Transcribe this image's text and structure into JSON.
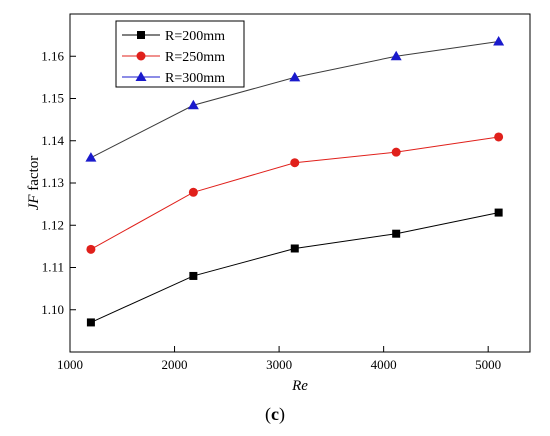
{
  "chart_data": {
    "type": "line",
    "xlabel": "Re",
    "ylabel_italic": "JF",
    "ylabel_rest": " factor",
    "xlim": [
      1000,
      5400
    ],
    "ylim": [
      1.09,
      1.17
    ],
    "xticks": [
      1000,
      2000,
      3000,
      4000,
      5000
    ],
    "yticks": [
      1.1,
      1.11,
      1.12,
      1.13,
      1.14,
      1.15,
      1.16
    ],
    "x": [
      1200,
      2180,
      3150,
      4120,
      5100
    ],
    "series": [
      {
        "name": "R=200mm",
        "values": [
          1.097,
          1.108,
          1.1145,
          1.118,
          1.123
        ],
        "color": "#000000",
        "line_color": "#000000",
        "marker": "square"
      },
      {
        "name": "R=250mm",
        "values": [
          1.1143,
          1.1278,
          1.1348,
          1.1373,
          1.1409
        ],
        "color": "#e0201b",
        "line_color": "#e0201b",
        "marker": "circle"
      },
      {
        "name": "R=300mm",
        "values": [
          1.136,
          1.1484,
          1.155,
          1.16,
          1.1635
        ],
        "color": "#1a1acc",
        "line_color": "#3b3b3b",
        "marker": "triangle"
      }
    ],
    "legend_position": "top-left",
    "panel_label": "(c)",
    "grid": false
  }
}
